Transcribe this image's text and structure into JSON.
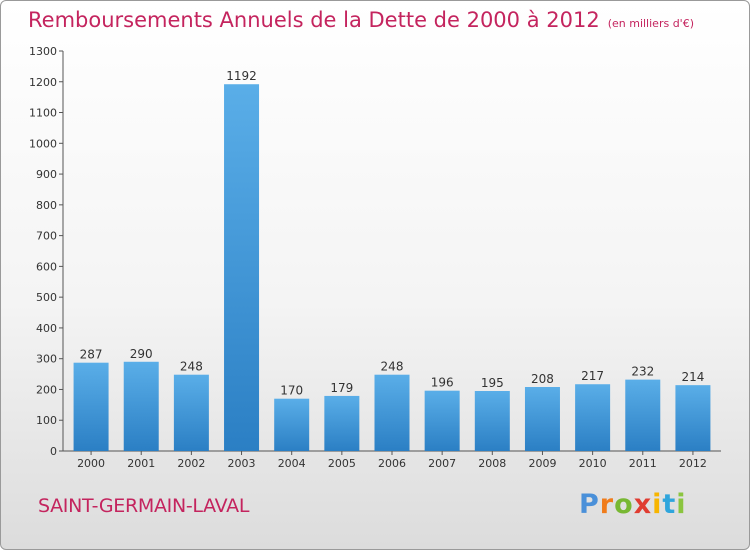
{
  "chart_data": {
    "type": "bar",
    "title": "Remboursements Annuels de la Dette de 2000 à 2012",
    "subtitle": "(en milliers d'€)",
    "categories": [
      "2000",
      "2001",
      "2002",
      "2003",
      "2004",
      "2005",
      "2006",
      "2007",
      "2008",
      "2009",
      "2010",
      "2011",
      "2012"
    ],
    "values": [
      287,
      290,
      248,
      1192,
      170,
      179,
      248,
      196,
      195,
      208,
      217,
      232,
      214
    ],
    "ylim": [
      0,
      1300
    ],
    "yticks": [
      0,
      100,
      200,
      300,
      400,
      500,
      600,
      700,
      800,
      900,
      1000,
      1100,
      1200,
      1300
    ],
    "grid": false,
    "bar_color_top": "#5aaee8",
    "bar_color_bottom": "#2b7fc4"
  },
  "footer": {
    "city": "SAINT-GERMAIN-LAVAL",
    "logo_letters": [
      "P",
      "r",
      "o",
      "x",
      "i",
      "t",
      "i"
    ],
    "logo_colors": [
      "#4a90d9",
      "#f07c1b",
      "#78b833",
      "#e03c31",
      "#f7b500",
      "#2fa5dc",
      "#8bc53f"
    ]
  }
}
